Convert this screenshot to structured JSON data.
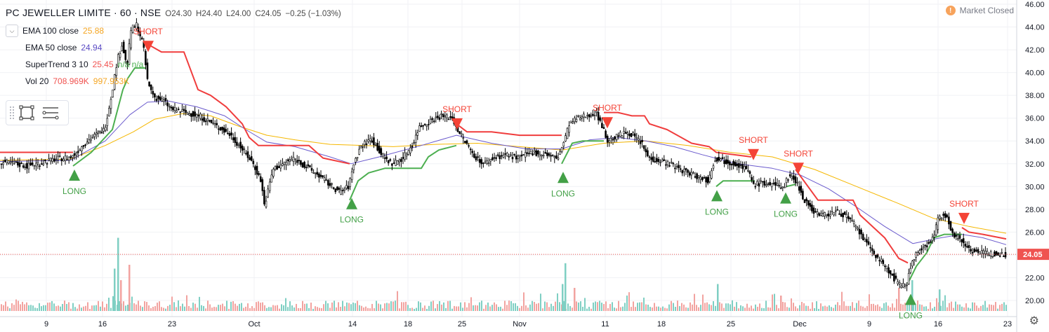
{
  "header": {
    "symbol": "PC JEWELLER LIMITE · 60 · NSE",
    "open": "O24.30",
    "high": "H24.40",
    "low": "L24.00",
    "close": "C24.05",
    "change": "−0.25 (−1.03%)"
  },
  "indicators": [
    {
      "name": "EMA 100 close",
      "value": "25.88",
      "value2": "",
      "color": "#f5a623"
    },
    {
      "name": "EMA 50 close",
      "value": "24.94",
      "value2": "",
      "color": "#5b4bc4"
    },
    {
      "name": "SuperTrend 3 10",
      "value": "25.45",
      "value2": "n/a n/a",
      "color": "#f05350"
    },
    {
      "name": "Vol 20",
      "value": "708.969K",
      "value2": "997.953K",
      "color": "#f05350"
    }
  ],
  "market_status": "Market Closed",
  "last_price_label": "24.05",
  "colors": {
    "up": "#26a69a",
    "down": "#ef5350",
    "candle": "#000000",
    "ema100": "#f5b700",
    "ema50": "#6a5acd",
    "st_down": "#f03d3d",
    "st_up": "#4caf50",
    "vol_up": "#7fcfc3",
    "vol_down": "#f2a3a0",
    "price_line": "#ef5350"
  },
  "icons": {
    "collapse": "chevron-down-icon",
    "rectangle": "rectangle-tool-icon",
    "lines": "horizontal-lines-icon",
    "settings": "gear-icon",
    "warning": "warning-icon"
  },
  "chart_data": {
    "type": "candlestick",
    "y_axis": {
      "min": 19.2,
      "max": 46.0,
      "ticks": [
        "46.00",
        "44.00",
        "42.00",
        "40.00",
        "38.00",
        "36.00",
        "34.00",
        "32.00",
        "30.00",
        "28.00",
        "26.00",
        "24.00",
        "22.00",
        "20.00"
      ],
      "side": "right"
    },
    "x_axis": {
      "ticks": [
        "9",
        "16",
        "23",
        "Oct",
        "14",
        "18",
        "25",
        "Nov",
        "11",
        "18",
        "25",
        "Dec",
        "9",
        "16",
        "23"
      ]
    },
    "price_path": [
      [
        0,
        32.2
      ],
      [
        40,
        31.8
      ],
      [
        80,
        32.4
      ],
      [
        104,
        32.6
      ],
      [
        125,
        34.0
      ],
      [
        150,
        35.0
      ],
      [
        160,
        38.0
      ],
      [
        168,
        41.0
      ],
      [
        175,
        42.5
      ],
      [
        182,
        40.5
      ],
      [
        188,
        43.8
      ],
      [
        196,
        44.2
      ],
      [
        205,
        42.5
      ],
      [
        212,
        39.0
      ],
      [
        222,
        37.8
      ],
      [
        235,
        37.5
      ],
      [
        245,
        36.8
      ],
      [
        265,
        36.5
      ],
      [
        285,
        36.2
      ],
      [
        305,
        35.5
      ],
      [
        330,
        34.5
      ],
      [
        350,
        33.0
      ],
      [
        362,
        32.0
      ],
      [
        373,
        30.5
      ],
      [
        378,
        28.3
      ],
      [
        390,
        31.5
      ],
      [
        405,
        32.0
      ],
      [
        420,
        32.5
      ],
      [
        435,
        31.8
      ],
      [
        455,
        31.0
      ],
      [
        470,
        30.2
      ],
      [
        485,
        29.5
      ],
      [
        498,
        30.0
      ],
      [
        505,
        32.0
      ],
      [
        515,
        33.5
      ],
      [
        530,
        34.2
      ],
      [
        548,
        32.5
      ],
      [
        560,
        32.0
      ],
      [
        575,
        32.5
      ],
      [
        590,
        33.8
      ],
      [
        598,
        35.2
      ],
      [
        615,
        35.8
      ],
      [
        630,
        36.2
      ],
      [
        645,
        36.0
      ],
      [
        655,
        34.8
      ],
      [
        668,
        33.5
      ],
      [
        680,
        32.5
      ],
      [
        690,
        32.0
      ],
      [
        705,
        32.5
      ],
      [
        720,
        32.8
      ],
      [
        740,
        32.5
      ],
      [
        760,
        33.0
      ],
      [
        780,
        32.8
      ],
      [
        795,
        32.4
      ],
      [
        805,
        34.0
      ],
      [
        812,
        35.5
      ],
      [
        825,
        36.0
      ],
      [
        840,
        36.3
      ],
      [
        850,
        36.5
      ],
      [
        858,
        35.5
      ],
      [
        866,
        34.0
      ],
      [
        880,
        34.4
      ],
      [
        895,
        34.8
      ],
      [
        905,
        34.4
      ],
      [
        915,
        33.8
      ],
      [
        925,
        32.5
      ],
      [
        940,
        32.3
      ],
      [
        955,
        32.0
      ],
      [
        970,
        31.5
      ],
      [
        990,
        31.0
      ],
      [
        1010,
        30.5
      ],
      [
        1020,
        32.5
      ],
      [
        1035,
        32.2
      ],
      [
        1050,
        32.0
      ],
      [
        1065,
        31.5
      ],
      [
        1075,
        30.2
      ],
      [
        1090,
        30.3
      ],
      [
        1105,
        30.1
      ],
      [
        1118,
        30.0
      ],
      [
        1125,
        31.0
      ],
      [
        1135,
        30.5
      ],
      [
        1145,
        29.0
      ],
      [
        1160,
        27.8
      ],
      [
        1175,
        27.5
      ],
      [
        1190,
        27.8
      ],
      [
        1205,
        27.5
      ],
      [
        1220,
        26.5
      ],
      [
        1235,
        25.0
      ],
      [
        1248,
        24.0
      ],
      [
        1262,
        23.0
      ],
      [
        1276,
        21.8
      ],
      [
        1285,
        21.2
      ],
      [
        1293,
        21.5
      ],
      [
        1300,
        23.5
      ],
      [
        1310,
        24.3
      ],
      [
        1320,
        24.8
      ],
      [
        1330,
        25.5
      ],
      [
        1338,
        27.2
      ],
      [
        1350,
        27.6
      ],
      [
        1357,
        25.8
      ],
      [
        1365,
        25.5
      ],
      [
        1375,
        25.0
      ],
      [
        1385,
        24.4
      ],
      [
        1400,
        24.2
      ],
      [
        1415,
        24.1
      ],
      [
        1433,
        24.05
      ]
    ],
    "ema100": [
      [
        0,
        32.3
      ],
      [
        100,
        32.4
      ],
      [
        150,
        33.6
      ],
      [
        190,
        34.8
      ],
      [
        220,
        35.9
      ],
      [
        260,
        36.4
      ],
      [
        300,
        36.2
      ],
      [
        340,
        35.3
      ],
      [
        380,
        34.5
      ],
      [
        420,
        34.1
      ],
      [
        470,
        33.7
      ],
      [
        520,
        33.6
      ],
      [
        560,
        33.5
      ],
      [
        620,
        33.7
      ],
      [
        680,
        33.8
      ],
      [
        740,
        33.5
      ],
      [
        800,
        33.2
      ],
      [
        860,
        33.8
      ],
      [
        920,
        34.0
      ],
      [
        980,
        33.6
      ],
      [
        1040,
        33.0
      ],
      [
        1100,
        32.6
      ],
      [
        1160,
        31.5
      ],
      [
        1220,
        30.0
      ],
      [
        1280,
        28.5
      ],
      [
        1330,
        27.2
      ],
      [
        1380,
        26.5
      ],
      [
        1433,
        25.9
      ]
    ],
    "ema50": [
      [
        0,
        32.2
      ],
      [
        100,
        32.3
      ],
      [
        150,
        34.0
      ],
      [
        185,
        36.3
      ],
      [
        210,
        37.4
      ],
      [
        240,
        37.5
      ],
      [
        280,
        37.0
      ],
      [
        320,
        36.2
      ],
      [
        350,
        35.0
      ],
      [
        380,
        33.9
      ],
      [
        420,
        33.5
      ],
      [
        470,
        32.6
      ],
      [
        500,
        32.0
      ],
      [
        540,
        32.6
      ],
      [
        600,
        33.6
      ],
      [
        650,
        34.5
      ],
      [
        700,
        33.8
      ],
      [
        750,
        33.3
      ],
      [
        800,
        33.3
      ],
      [
        840,
        34.1
      ],
      [
        880,
        34.3
      ],
      [
        920,
        34.0
      ],
      [
        960,
        33.5
      ],
      [
        1000,
        32.8
      ],
      [
        1050,
        32.0
      ],
      [
        1100,
        31.6
      ],
      [
        1140,
        31.0
      ],
      [
        1180,
        29.8
      ],
      [
        1220,
        28.2
      ],
      [
        1260,
        26.5
      ],
      [
        1300,
        25.0
      ],
      [
        1340,
        25.5
      ],
      [
        1370,
        25.8
      ],
      [
        1400,
        25.5
      ],
      [
        1433,
        24.9
      ]
    ],
    "supertrend_down": [
      [
        0,
        33.0
      ],
      [
        104,
        33.0
      ],
      null,
      [
        210,
        42.5
      ],
      [
        230,
        41.8
      ],
      [
        262,
        41.8
      ],
      [
        282,
        38.5
      ],
      [
        300,
        38.0
      ],
      [
        322,
        37.0
      ],
      [
        345,
        35.5
      ],
      [
        355,
        34.3
      ],
      [
        368,
        33.6
      ],
      [
        440,
        33.6
      ],
      [
        460,
        32.5
      ],
      [
        498,
        32.0
      ],
      null,
      [
        650,
        35.5
      ],
      [
        665,
        34.8
      ],
      [
        700,
        34.8
      ],
      [
        740,
        34.5
      ],
      [
        800,
        34.5
      ],
      null,
      [
        860,
        36.5
      ],
      [
        880,
        36.5
      ],
      [
        900,
        36.2
      ],
      [
        918,
        36.2
      ],
      [
        925,
        35.5
      ],
      [
        950,
        35.0
      ],
      [
        985,
        33.8
      ],
      [
        1010,
        33.5
      ],
      [
        1020,
        33.0
      ],
      [
        1070,
        32.6
      ],
      null,
      [
        1133,
        31.5
      ],
      [
        1165,
        28.8
      ],
      [
        1215,
        28.8
      ],
      [
        1225,
        27.5
      ],
      [
        1260,
        25.5
      ],
      [
        1280,
        23.7
      ],
      [
        1293,
        23.3
      ],
      null,
      [
        1370,
        26.4
      ],
      [
        1380,
        26.0
      ],
      [
        1400,
        25.8
      ],
      [
        1433,
        25.4
      ]
    ],
    "supertrend_up": [
      [
        104,
        31.8
      ],
      [
        130,
        33.0
      ],
      [
        160,
        35.0
      ],
      [
        175,
        38.5
      ],
      [
        182,
        39.5
      ],
      [
        192,
        40.4
      ],
      [
        208,
        40.4
      ],
      null,
      [
        498,
        28.8
      ],
      [
        510,
        30.5
      ],
      [
        525,
        31.2
      ],
      [
        548,
        31.6
      ],
      [
        600,
        31.6
      ],
      [
        610,
        32.6
      ],
      [
        625,
        33.2
      ],
      [
        650,
        33.6
      ],
      null,
      [
        800,
        32.0
      ],
      [
        815,
        33.8
      ],
      [
        830,
        34.0
      ],
      [
        860,
        34.0
      ],
      null,
      [
        1020,
        30.0
      ],
      [
        1030,
        30.5
      ],
      [
        1075,
        30.5
      ],
      null,
      [
        1120,
        30.0
      ],
      [
        1133,
        30.2
      ],
      null,
      [
        1293,
        21.5
      ],
      [
        1305,
        23.0
      ],
      [
        1320,
        24.2
      ],
      [
        1330,
        25.5
      ],
      [
        1345,
        25.8
      ],
      [
        1370,
        25.8
      ]
    ],
    "signals": [
      {
        "type": "LONG",
        "x": 106,
        "price": 31.0
      },
      {
        "type": "LONG",
        "x": 501,
        "price": 28.5
      },
      {
        "type": "LONG",
        "x": 802,
        "price": 30.8
      },
      {
        "type": "LONG",
        "x": 1021,
        "price": 29.2
      },
      {
        "type": "LONG",
        "x": 1119,
        "price": 29.0
      },
      {
        "type": "LONG",
        "x": 1297,
        "price": 20.1
      },
      {
        "type": "SHORT",
        "x": 211,
        "price": 42.3
      },
      {
        "type": "SHORT",
        "x": 651,
        "price": 35.5
      },
      {
        "type": "SHORT",
        "x": 865,
        "price": 35.6
      },
      {
        "type": "SHORT",
        "x": 1073,
        "price": 32.8
      },
      {
        "type": "SHORT",
        "x": 1137,
        "price": 31.6
      },
      {
        "type": "SHORT",
        "x": 1373,
        "price": 27.2
      }
    ],
    "volume_spikes": [
      {
        "x": 168,
        "up": true,
        "h": 0.95
      },
      {
        "x": 163,
        "up": true,
        "h": 0.55
      },
      {
        "x": 184,
        "up": false,
        "h": 0.6
      },
      {
        "x": 172,
        "up": false,
        "h": 0.4
      },
      {
        "x": 805,
        "up": true,
        "h": 0.62
      },
      {
        "x": 801,
        "up": true,
        "h": 0.35
      },
      {
        "x": 1022,
        "up": true,
        "h": 0.35
      },
      {
        "x": 1299,
        "up": true,
        "h": 0.4
      },
      {
        "x": 1338,
        "up": true,
        "h": 0.28
      },
      {
        "x": 1280,
        "up": false,
        "h": 0.3
      },
      {
        "x": 818,
        "up": false,
        "h": 0.3
      },
      {
        "x": 1112,
        "up": false,
        "h": 0.2
      }
    ]
  }
}
